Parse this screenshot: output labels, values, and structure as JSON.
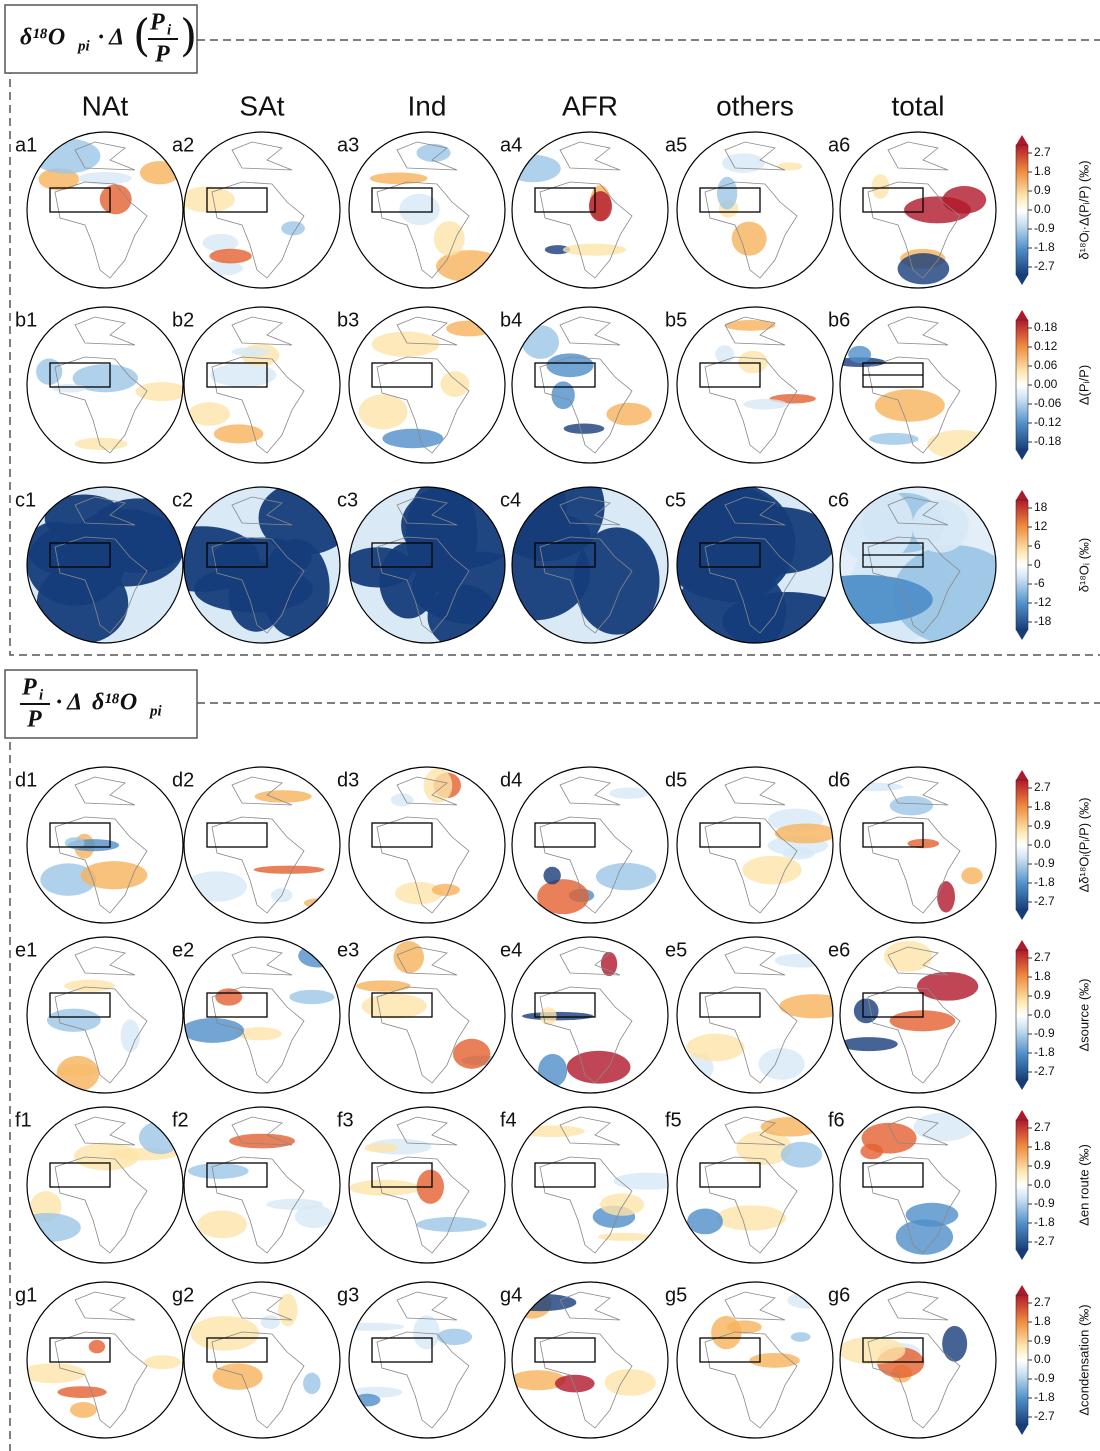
{
  "columns": [
    "NAt",
    "SAt",
    "Ind",
    "AFR",
    "others",
    "total"
  ],
  "sections": [
    {
      "header": {
        "main": "δ¹⁸O",
        "sub": "pi",
        "op": "· Δ",
        "num": "P",
        "num_sub": "i",
        "den": "P"
      },
      "rows": [
        {
          "panels": [
            "a1",
            "a2",
            "a3",
            "a4",
            "a5",
            "a6"
          ],
          "colorbar": {
            "label": "δ¹⁸Oᵢ·Δ(Pᵢ/P) (‰)",
            "ticks": [
              "2.7",
              "1.8",
              "0.9",
              "0.0",
              "-0.9",
              "-1.8",
              "-2.7"
            ]
          }
        },
        {
          "panels": [
            "b1",
            "b2",
            "b3",
            "b4",
            "b5",
            "b6"
          ],
          "colorbar": {
            "label": "Δ(Pᵢ/P)",
            "ticks": [
              "0.18",
              "0.12",
              "0.06",
              "0.00",
              "-0.06",
              "-0.12",
              "-0.18"
            ]
          }
        },
        {
          "panels": [
            "c1",
            "c2",
            "c3",
            "c4",
            "c5",
            "c6"
          ],
          "colorbar": {
            "label": "δ¹⁸Oᵢ (‰)",
            "ticks": [
              "18",
              "12",
              "6",
              "0",
              "-6",
              "-12",
              "-18"
            ]
          }
        }
      ]
    },
    {
      "header": {
        "num": "P",
        "num_sub": "i",
        "den": "P",
        "op": "· Δ",
        "main": "δ¹⁸O",
        "sub": "pi"
      },
      "rows": [
        {
          "panels": [
            "d1",
            "d2",
            "d3",
            "d4",
            "d5",
            "d6"
          ],
          "colorbar": {
            "label": "Δδ¹⁸Oᵢ(Pᵢ/P) (‰)",
            "ticks": [
              "2.7",
              "1.8",
              "0.9",
              "0.0",
              "-0.9",
              "-1.8",
              "-2.7"
            ]
          }
        },
        {
          "panels": [
            "e1",
            "e2",
            "e3",
            "e4",
            "e5",
            "e6"
          ],
          "colorbar": {
            "label": "Δsource (‰)",
            "ticks": [
              "2.7",
              "1.8",
              "0.9",
              "0.0",
              "-0.9",
              "-1.8",
              "-2.7"
            ]
          }
        },
        {
          "panels": [
            "f1",
            "f2",
            "f3",
            "f4",
            "f5",
            "f6"
          ],
          "colorbar": {
            "label": "Δen route (‰)",
            "ticks": [
              "2.7",
              "1.8",
              "0.9",
              "0.0",
              "-0.9",
              "-1.8",
              "-2.7"
            ]
          }
        },
        {
          "panels": [
            "g1",
            "g2",
            "g3",
            "g4",
            "g5",
            "g6"
          ],
          "colorbar": {
            "label": "Δcondensation (‰)",
            "ticks": [
              "2.7",
              "1.8",
              "0.9",
              "0.0",
              "-0.9",
              "-1.8",
              "-2.7"
            ]
          }
        }
      ]
    }
  ]
}
